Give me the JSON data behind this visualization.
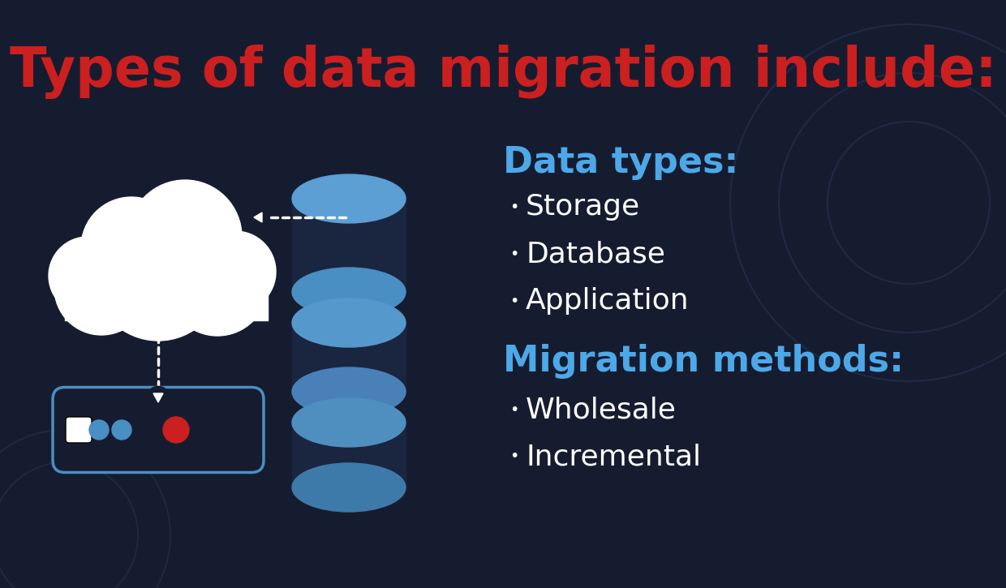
{
  "title": "Types of data migration include:",
  "title_color": "#cc1f1f",
  "title_fontsize": 48,
  "background_color": "#161c30",
  "data_types_label": "Data types:",
  "data_types_color": "#4da8e8",
  "data_types_items": [
    "Storage",
    "Database",
    "Application"
  ],
  "migration_methods_label": "Migration methods:",
  "migration_methods_color": "#4da8e8",
  "migration_methods_items": [
    "Wholesale",
    "Incremental"
  ],
  "list_text_color": "#ffffff",
  "list_fontsize": 26,
  "heading_fontsize": 32,
  "cloud_color": "#ffffff",
  "cloud_shadow_color": "#c8d0dc",
  "db_top_color": "#5b9fd4",
  "db_body_color": "#1a2540",
  "db_rim_color": "#4a8fc4",
  "server_border_color": "#4a8fc4",
  "server_bg_color": "#161c30",
  "dot_white": "#ffffff",
  "dot_blue": "#4a8fc4",
  "red_dot_color": "#cc1f1f",
  "dotted_line_color": "#ffffff",
  "circle_color": "#1e2a45",
  "arrow_bg": "#161c30"
}
